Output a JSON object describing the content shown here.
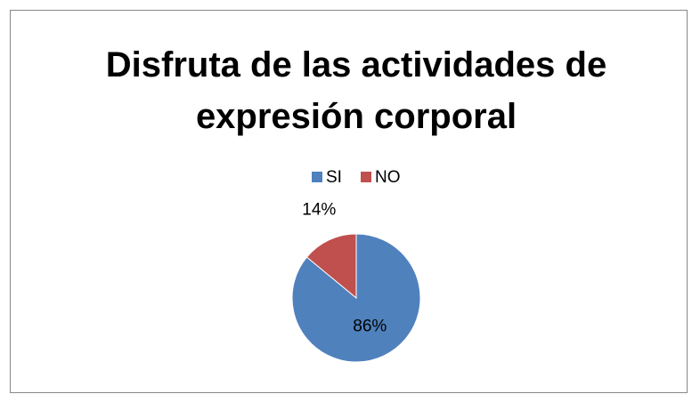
{
  "chart_data": {
    "type": "pie",
    "title": "Disfruta de las actividades de expresión corporal",
    "categories": [
      "SI",
      "NO"
    ],
    "values": [
      86,
      14
    ],
    "value_labels": [
      "86%",
      "14%"
    ],
    "colors": [
      "#4f81bd",
      "#c0504d"
    ],
    "legend": "top"
  }
}
